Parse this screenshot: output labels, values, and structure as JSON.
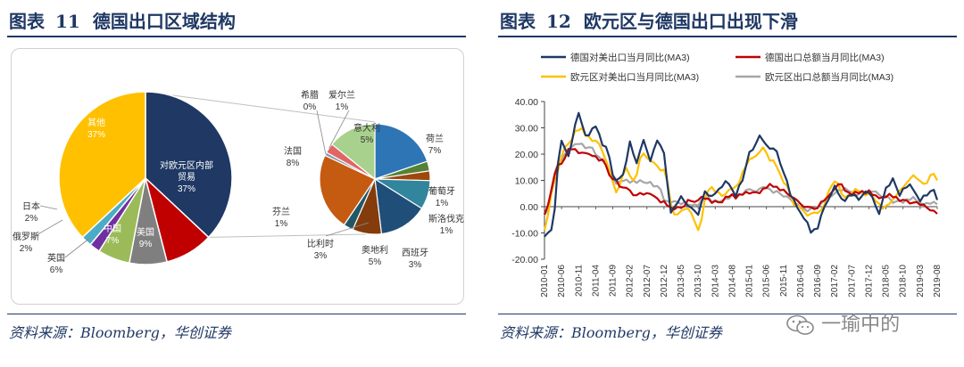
{
  "left": {
    "title_label": "图表",
    "title_number": "11",
    "title_text": "德国出口区域结构",
    "source": "资料来源：Bloomberg，华创证券",
    "main_pie": [
      {
        "name": "对欧元区内部贸易",
        "pct": 37,
        "color": "#1f3864",
        "label": "37%"
      },
      {
        "name": "美国",
        "pct": 9,
        "color": "#c00000",
        "label": "9%"
      },
      {
        "name": "中国",
        "pct": 7,
        "color": "#7f7f7f",
        "label": "7%"
      },
      {
        "name": "英国",
        "pct": 6,
        "color": "#9bbb59",
        "label": "6%"
      },
      {
        "name": "俄罗斯",
        "pct": 2,
        "color": "#7030a0",
        "label": "2%"
      },
      {
        "name": "日本",
        "pct": 2,
        "color": "#4bacc6",
        "label": "2%"
      },
      {
        "name": "其他",
        "pct": 37,
        "color": "#ffc000",
        "label": "37%"
      }
    ],
    "sub_pie": [
      {
        "name": "荷兰",
        "pct": 7,
        "color": "#2e75b6",
        "label": "7%"
      },
      {
        "name": "葡萄牙",
        "pct": 1,
        "color": "#548235",
        "label": "1%"
      },
      {
        "name": "斯洛伐克",
        "pct": 1,
        "color": "#9e480e",
        "label": "1%"
      },
      {
        "name": "西班牙",
        "pct": 3,
        "color": "#31859c",
        "label": "3%"
      },
      {
        "name": "奥地利",
        "pct": 5,
        "color": "#1f4e79",
        "label": "5%"
      },
      {
        "name": "比利时",
        "pct": 3,
        "color": "#843c0c",
        "label": "3%"
      },
      {
        "name": "芬兰",
        "pct": 1,
        "color": "#215868",
        "label": "1%"
      },
      {
        "name": "法国",
        "pct": 8,
        "color": "#c55a11",
        "label": "8%"
      },
      {
        "name": "希腊",
        "pct": 0,
        "color": "#8497b0",
        "label": "0%"
      },
      {
        "name": "爱尔兰",
        "pct": 1,
        "color": "#e06666",
        "label": "1%"
      },
      {
        "name": "意大利",
        "pct": 5,
        "color": "#a9d18e",
        "label": "5%"
      }
    ]
  },
  "right": {
    "title_label": "图表",
    "title_number": "12",
    "title_text": "欧元区与德国出口出现下滑",
    "source": "资料来源：Bloomberg，华创证券",
    "watermark": "一瑜中的"
  },
  "chart_data": [
    {
      "type": "pie",
      "title": "德国出口区域结构",
      "slices": [
        {
          "label": "对欧元区内部贸易",
          "value": 37
        },
        {
          "label": "美国",
          "value": 9
        },
        {
          "label": "中国",
          "value": 7
        },
        {
          "label": "英国",
          "value": 6
        },
        {
          "label": "俄罗斯",
          "value": 2
        },
        {
          "label": "日本",
          "value": 2
        },
        {
          "label": "其他",
          "value": 37
        }
      ],
      "breakdown_of": "对欧元区内部贸易",
      "breakdown": [
        {
          "label": "荷兰",
          "value": 7
        },
        {
          "label": "葡萄牙",
          "value": 1
        },
        {
          "label": "斯洛伐克",
          "value": 1
        },
        {
          "label": "西班牙",
          "value": 3
        },
        {
          "label": "奥地利",
          "value": 5
        },
        {
          "label": "比利时",
          "value": 3
        },
        {
          "label": "芬兰",
          "value": 1
        },
        {
          "label": "法国",
          "value": 8
        },
        {
          "label": "希腊",
          "value": 0
        },
        {
          "label": "爱尔兰",
          "value": 1
        },
        {
          "label": "意大利",
          "value": 5
        }
      ]
    },
    {
      "type": "line",
      "title": "欧元区与德国出口出现下滑",
      "x_start": "2010-01",
      "x_end": "2019-08",
      "x_ticks": [
        "2010-01",
        "2010-06",
        "2010-11",
        "2011-04",
        "2011-09",
        "2012-02",
        "2012-07",
        "2012-12",
        "2013-05",
        "2013-10",
        "2014-03",
        "2014-08",
        "2015-01",
        "2015-06",
        "2015-11",
        "2016-04",
        "2016-09",
        "2017-02",
        "2017-07",
        "2017-12",
        "2018-05",
        "2018-10",
        "2019-03",
        "2019-08"
      ],
      "ylim": [
        -20,
        40
      ],
      "y_ticks": [
        "40.00",
        "30.00",
        "20.00",
        "10.00",
        "0.00",
        "-10.00",
        "-20.00"
      ],
      "legend_position": "top",
      "series": [
        {
          "name": "德国对美出口当月同比(MA3)",
          "color": "#1f3864",
          "keyframes": [
            [
              "2010-01",
              -12
            ],
            [
              "2010-03",
              -9
            ],
            [
              "2010-06",
              25
            ],
            [
              "2010-08",
              20
            ],
            [
              "2010-11",
              35
            ],
            [
              "2011-01",
              27
            ],
            [
              "2011-04",
              30
            ],
            [
              "2011-07",
              22
            ],
            [
              "2011-10",
              9
            ],
            [
              "2011-12",
              12
            ],
            [
              "2012-02",
              24
            ],
            [
              "2012-04",
              16
            ],
            [
              "2012-06",
              25
            ],
            [
              "2012-08",
              18
            ],
            [
              "2012-10",
              25
            ],
            [
              "2012-12",
              20
            ],
            [
              "2013-02",
              -2
            ],
            [
              "2013-05",
              4
            ],
            [
              "2013-08",
              -1
            ],
            [
              "2013-10",
              -3
            ],
            [
              "2013-12",
              6
            ],
            [
              "2014-02",
              3
            ],
            [
              "2014-04",
              7
            ],
            [
              "2014-06",
              10
            ],
            [
              "2014-09",
              5
            ],
            [
              "2014-11",
              10
            ],
            [
              "2015-01",
              20
            ],
            [
              "2015-04",
              26
            ],
            [
              "2015-07",
              22
            ],
            [
              "2015-09",
              21
            ],
            [
              "2015-11",
              12
            ],
            [
              "2016-02",
              2
            ],
            [
              "2016-05",
              -4
            ],
            [
              "2016-07",
              -10
            ],
            [
              "2016-09",
              -8
            ],
            [
              "2016-11",
              0
            ],
            [
              "2017-02",
              8
            ],
            [
              "2017-04",
              2
            ],
            [
              "2017-07",
              5
            ],
            [
              "2017-09",
              3
            ],
            [
              "2017-12",
              6
            ],
            [
              "2018-03",
              -3
            ],
            [
              "2018-05",
              7
            ],
            [
              "2018-07",
              10
            ],
            [
              "2018-09",
              5
            ],
            [
              "2018-12",
              8
            ],
            [
              "2019-03",
              2
            ],
            [
              "2019-05",
              5
            ],
            [
              "2019-07",
              6
            ],
            [
              "2019-08",
              3
            ]
          ]
        },
        {
          "name": "德国出口总额当月同比(MA3)",
          "color": "#c00000",
          "keyframes": [
            [
              "2010-01",
              -2
            ],
            [
              "2010-05",
              15
            ],
            [
              "2010-09",
              22
            ],
            [
              "2011-02",
              20
            ],
            [
              "2011-06",
              17
            ],
            [
              "2011-09",
              10
            ],
            [
              "2011-12",
              7
            ],
            [
              "2012-04",
              4
            ],
            [
              "2012-08",
              5
            ],
            [
              "2012-12",
              1
            ],
            [
              "2013-04",
              -1
            ],
            [
              "2013-08",
              2
            ],
            [
              "2013-12",
              3
            ],
            [
              "2014-04",
              2
            ],
            [
              "2014-08",
              4
            ],
            [
              "2014-12",
              5
            ],
            [
              "2015-04",
              6
            ],
            [
              "2015-08",
              8
            ],
            [
              "2015-12",
              5
            ],
            [
              "2016-04",
              1
            ],
            [
              "2016-08",
              -1
            ],
            [
              "2016-12",
              3
            ],
            [
              "2017-03",
              8
            ],
            [
              "2017-07",
              5
            ],
            [
              "2017-11",
              6
            ],
            [
              "2018-03",
              3
            ],
            [
              "2018-07",
              4
            ],
            [
              "2018-11",
              2
            ],
            [
              "2019-02",
              1
            ],
            [
              "2019-06",
              -1
            ],
            [
              "2019-08",
              -3
            ]
          ]
        },
        {
          "name": "欧元区对美出口当月同比(MA3)",
          "color": "#ffc000",
          "keyframes": [
            [
              "2010-01",
              -8
            ],
            [
              "2010-04",
              10
            ],
            [
              "2010-07",
              22
            ],
            [
              "2010-11",
              30
            ],
            [
              "2011-02",
              26
            ],
            [
              "2011-05",
              24
            ],
            [
              "2011-08",
              14
            ],
            [
              "2011-10",
              6
            ],
            [
              "2012-01",
              15
            ],
            [
              "2012-03",
              10
            ],
            [
              "2012-06",
              20
            ],
            [
              "2012-09",
              16
            ],
            [
              "2012-12",
              14
            ],
            [
              "2013-03",
              -3
            ],
            [
              "2013-07",
              0
            ],
            [
              "2013-10",
              -8
            ],
            [
              "2014-01",
              7
            ],
            [
              "2014-05",
              5
            ],
            [
              "2014-09",
              8
            ],
            [
              "2015-01",
              18
            ],
            [
              "2015-05",
              22
            ],
            [
              "2015-08",
              17
            ],
            [
              "2015-11",
              10
            ],
            [
              "2016-03",
              0
            ],
            [
              "2016-07",
              -3
            ],
            [
              "2016-10",
              -1
            ],
            [
              "2017-02",
              10
            ],
            [
              "2017-05",
              4
            ],
            [
              "2017-09",
              6
            ],
            [
              "2018-01",
              4
            ],
            [
              "2018-04",
              -1
            ],
            [
              "2018-07",
              3
            ],
            [
              "2018-10",
              8
            ],
            [
              "2019-01",
              12
            ],
            [
              "2019-04",
              9
            ],
            [
              "2019-07",
              13
            ],
            [
              "2019-08",
              11
            ]
          ]
        },
        {
          "name": "欧元区出口总额当月同比(MA3)",
          "color": "#a6a6a6",
          "keyframes": [
            [
              "2010-01",
              -4
            ],
            [
              "2010-05",
              17
            ],
            [
              "2010-10",
              24
            ],
            [
              "2011-02",
              22
            ],
            [
              "2011-06",
              18
            ],
            [
              "2011-10",
              9
            ],
            [
              "2012-02",
              10
            ],
            [
              "2012-06",
              9
            ],
            [
              "2012-10",
              8
            ],
            [
              "2013-01",
              2
            ],
            [
              "2013-05",
              1
            ],
            [
              "2013-09",
              1
            ],
            [
              "2014-01",
              3
            ],
            [
              "2014-05",
              2
            ],
            [
              "2014-09",
              4
            ],
            [
              "2015-01",
              6
            ],
            [
              "2015-05",
              7
            ],
            [
              "2015-09",
              6
            ],
            [
              "2016-01",
              3
            ],
            [
              "2016-05",
              -1
            ],
            [
              "2016-09",
              0
            ],
            [
              "2017-01",
              5
            ],
            [
              "2017-04",
              7
            ],
            [
              "2017-08",
              5
            ],
            [
              "2017-12",
              6
            ],
            [
              "2018-04",
              4
            ],
            [
              "2018-08",
              2
            ],
            [
              "2018-12",
              3
            ],
            [
              "2019-04",
              1
            ],
            [
              "2019-08",
              2
            ]
          ]
        }
      ]
    }
  ]
}
